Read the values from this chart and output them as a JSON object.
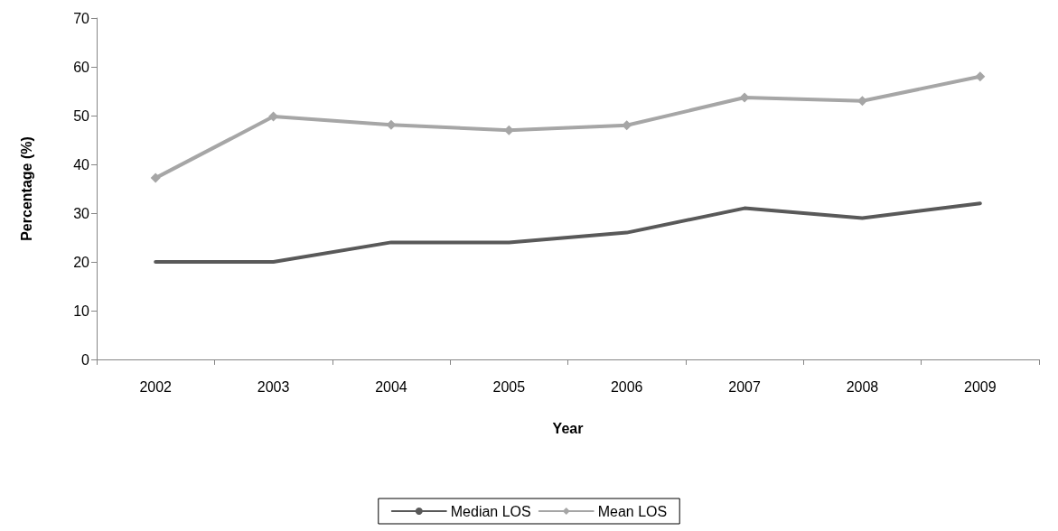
{
  "chart_data": {
    "type": "line",
    "xlabel": "Year",
    "ylabel": "Percentage (%)",
    "categories": [
      "2002",
      "2003",
      "2004",
      "2005",
      "2006",
      "2007",
      "2008",
      "2009"
    ],
    "series": [
      {
        "name": "Median LOS",
        "color": "#595959",
        "marker": "none",
        "values": [
          20,
          20,
          24,
          24,
          26,
          31,
          29,
          32
        ]
      },
      {
        "name": "Mean LOS",
        "color": "#a6a6a6",
        "marker": "diamond",
        "values": [
          37.2,
          49.8,
          48.1,
          47,
          48,
          53.7,
          53,
          58
        ]
      }
    ],
    "ylim": [
      0,
      70
    ],
    "yticks": [
      0,
      10,
      20,
      30,
      40,
      50,
      60,
      70
    ],
    "grid": false,
    "legend": "bottom",
    "line_style": "solid"
  }
}
